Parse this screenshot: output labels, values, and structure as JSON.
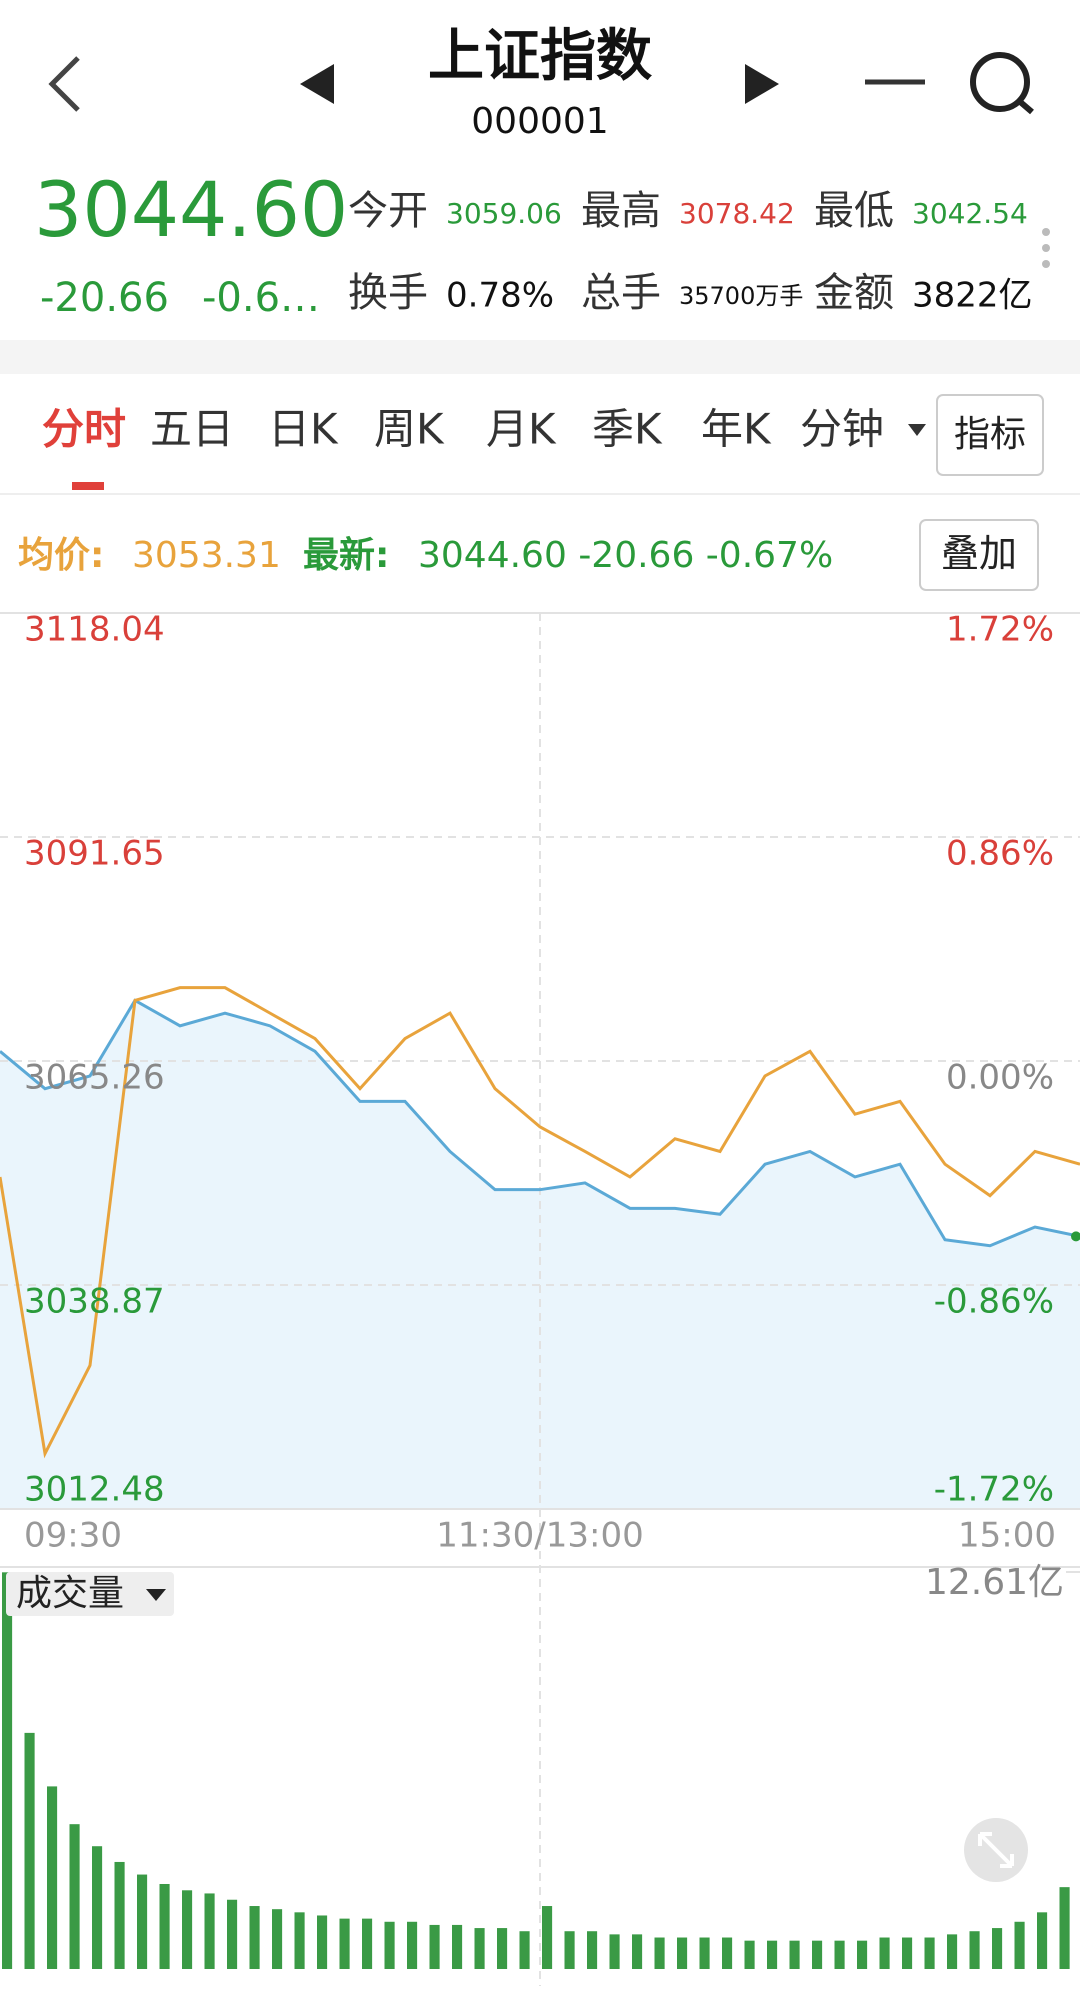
{
  "header": {
    "title": "上证指数",
    "code": "000001"
  },
  "quote": {
    "price": "3044.60",
    "change": "-20.66",
    "change_pct": "-0.6…",
    "stats": [
      {
        "label": "今开",
        "value": "3059.06"
      },
      {
        "label": "最高",
        "value": "3078.42"
      },
      {
        "label": "最低",
        "value": "3042.54"
      },
      {
        "label": "换手",
        "value": "0.78%"
      },
      {
        "label": "总手",
        "value": "35700万手"
      },
      {
        "label": "金额",
        "value": "3822亿"
      }
    ]
  },
  "tabs": [
    "分时",
    "五日",
    "日K",
    "周K",
    "月K",
    "季K",
    "年K",
    "分钟"
  ],
  "indicator_button": "指标",
  "legend": {
    "avg_label": "均价:",
    "avg_value": "3053.31",
    "latest_label": "最新:",
    "latest_value": "3044.60 -20.66 -0.67%",
    "overlay_button": "叠加"
  },
  "chart_data": [
    {
      "type": "line",
      "x": [
        0,
        10,
        20,
        30,
        40,
        50,
        60,
        70,
        80,
        90,
        100,
        110,
        120,
        130,
        140,
        150,
        160,
        170,
        180,
        190,
        200,
        210,
        220,
        230,
        240
      ],
      "series": [
        {
          "color": "#5ba9d6",
          "values": [
            3066.4,
            3062,
            3063.5,
            3072.4,
            3069.4,
            3070.9,
            3069.4,
            3066.4,
            3060.5,
            3060.5,
            3054.6,
            3050.1,
            3050.1,
            3050.9,
            3047.9,
            3047.9,
            3047.2,
            3053.1,
            3054.6,
            3051.6,
            3053.1,
            3044.2,
            3043.5,
            3045.7,
            3044.6
          ]
        },
        {
          "color": "#e8a33c",
          "values": [
            3051.6,
            3019,
            3029.4,
            3072.4,
            3073.9,
            3073.9,
            3070.9,
            3067.9,
            3062,
            3067.9,
            3070.9,
            3062,
            3057.5,
            3054.6,
            3051.6,
            3056.1,
            3054.6,
            3063.5,
            3066.4,
            3059,
            3060.5,
            3053.1,
            3049.4,
            3054.6,
            3053.1
          ]
        }
      ],
      "xlim": [
        0,
        240
      ],
      "xticks": [
        {
          "value": 0,
          "label": "09:30"
        },
        {
          "value": 120,
          "label": "11:30/13:00"
        },
        {
          "value": 240,
          "label": "15:00"
        }
      ],
      "ylim": [
        3012.48,
        3118.04
      ],
      "yticks": [
        3012.48,
        3038.87,
        3065.26,
        3091.65,
        3118.04
      ],
      "y2lim": [
        -1.72,
        1.72
      ],
      "y2ticks": [
        {
          "value": -1.72,
          "label": "-1.72%"
        },
        {
          "value": -0.86,
          "label": "-0.86%"
        },
        {
          "value": 0,
          "label": "0.00%"
        },
        {
          "value": 0.86,
          "label": "0.86%"
        },
        {
          "value": 1.72,
          "label": "1.72%"
        }
      ],
      "grid": true,
      "area_color": "#eaf5fc"
    },
    {
      "type": "bar",
      "title": "成交量",
      "x": [
        0,
        5,
        10,
        15,
        20,
        25,
        30,
        35,
        40,
        45,
        50,
        55,
        60,
        65,
        70,
        75,
        80,
        85,
        90,
        95,
        100,
        105,
        110,
        115,
        120,
        125,
        130,
        135,
        140,
        145,
        150,
        155,
        160,
        165,
        170,
        175,
        180,
        185,
        190,
        195,
        200,
        205,
        210,
        215,
        220,
        225,
        230,
        235
      ],
      "values": [
        12.6,
        7.5,
        5.8,
        4.6,
        3.9,
        3.4,
        3.0,
        2.7,
        2.5,
        2.4,
        2.2,
        2.0,
        1.9,
        1.8,
        1.7,
        1.6,
        1.6,
        1.5,
        1.5,
        1.4,
        1.4,
        1.3,
        1.3,
        1.2,
        2.0,
        1.2,
        1.2,
        1.1,
        1.1,
        1.0,
        1.0,
        1.0,
        1.0,
        0.9,
        0.9,
        0.9,
        0.9,
        0.9,
        0.9,
        1.0,
        1.0,
        1.0,
        1.1,
        1.2,
        1.3,
        1.5,
        1.8,
        2.6
      ],
      "xlim": [
        0,
        240
      ],
      "ylim": [
        0,
        12.61
      ],
      "yticks": [
        {
          "value": 12.61,
          "label": "12.61亿"
        }
      ],
      "color": "#3a9a45"
    }
  ]
}
